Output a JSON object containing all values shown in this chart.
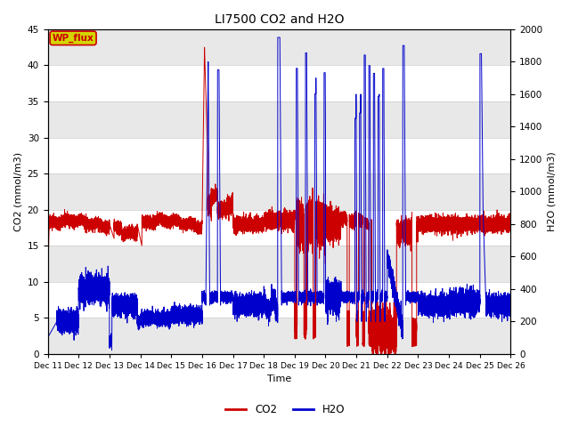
{
  "title": "LI7500 CO2 and H2O",
  "xlabel": "Time",
  "ylabel_left": "CO2 (mmol/m3)",
  "ylabel_right": "H2O (mmol/m3)",
  "ylim_left": [
    0,
    45
  ],
  "ylim_right": [
    0,
    2000
  ],
  "co2_color": "#cc0000",
  "h2o_color": "#0000cc",
  "background_color": "#ffffff",
  "legend_co2": "CO2",
  "legend_h2o": "H2O",
  "annotation_text": "WP_flux",
  "annotation_bg": "#d4d400",
  "annotation_border": "#cc0000",
  "x_tick_labels": [
    "Dec 11",
    "Dec 12",
    "Dec 13",
    "Dec 14",
    "Dec 15",
    "Dec 16",
    "Dec 17",
    "Dec 18",
    "Dec 19",
    "Dec 20",
    "Dec 21",
    "Dec 22",
    "Dec 23",
    "Dec 24",
    "Dec 25",
    "Dec 26"
  ],
  "yticks_left": [
    0,
    5,
    10,
    15,
    20,
    25,
    30,
    35,
    40,
    45
  ],
  "yticks_right": [
    0,
    200,
    400,
    600,
    800,
    1000,
    1200,
    1400,
    1600,
    1800,
    2000
  ],
  "figsize": [
    6.4,
    4.8
  ],
  "dpi": 100
}
